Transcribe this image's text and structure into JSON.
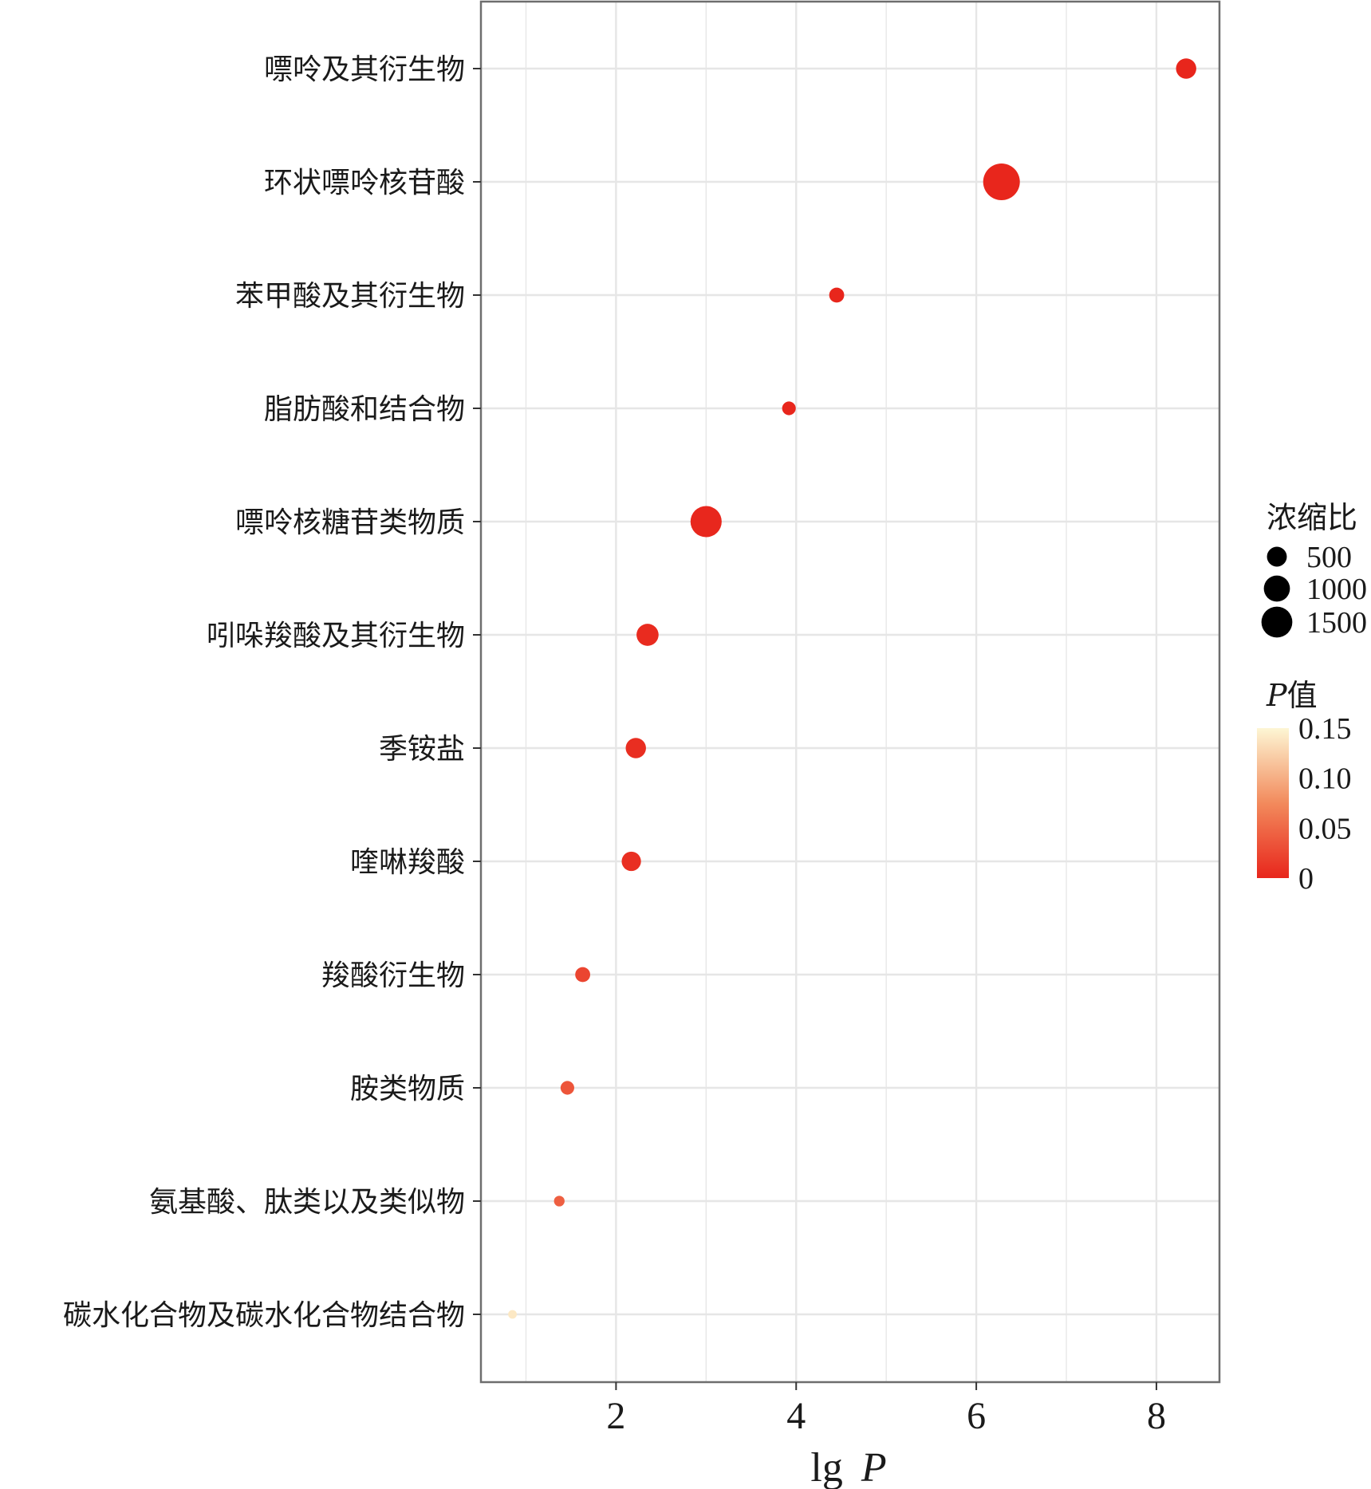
{
  "chart_data": {
    "type": "scatter",
    "title": "",
    "xlabel": {
      "prefix": "lg",
      "var": "P"
    },
    "ylabel": "",
    "xlim": [
      0.5,
      8.7
    ],
    "xticks": [
      2,
      4,
      6,
      8
    ],
    "grid": true,
    "categories": [
      "嘌呤及其衍生物",
      "环状嘌呤核苷酸",
      "苯甲酸及其衍生物",
      "脂肪酸和结合物",
      "嘌呤核糖苷类物质",
      "吲哚羧酸及其衍生物",
      "季铵盐",
      "喹啉羧酸",
      "羧酸衍生物",
      "胺类物质",
      "氨基酸、肽类以及类似物",
      "碳水化合物及碳水化合物结合物"
    ],
    "points": [
      {
        "category": "嘌呤及其衍生物",
        "lgP": 8.33,
        "enrichment": 550,
        "p": 0.0
      },
      {
        "category": "环状嘌呤核苷酸",
        "lgP": 6.28,
        "enrichment": 1800,
        "p": 0.0
      },
      {
        "category": "苯甲酸及其衍生物",
        "lgP": 4.45,
        "enrichment": 300,
        "p": 0.0
      },
      {
        "category": "脂肪酸和结合物",
        "lgP": 3.92,
        "enrichment": 250,
        "p": 0.0
      },
      {
        "category": "嘌呤核糖苷类物质",
        "lgP": 3.0,
        "enrichment": 1300,
        "p": 0.001
      },
      {
        "category": "吲哚羧酸及其衍生物",
        "lgP": 2.35,
        "enrichment": 650,
        "p": 0.004
      },
      {
        "category": "季铵盐",
        "lgP": 2.22,
        "enrichment": 550,
        "p": 0.006
      },
      {
        "category": "喹啉羧酸",
        "lgP": 2.17,
        "enrichment": 500,
        "p": 0.007
      },
      {
        "category": "羧酸衍生物",
        "lgP": 1.63,
        "enrichment": 300,
        "p": 0.023
      },
      {
        "category": "胺类物质",
        "lgP": 1.46,
        "enrichment": 250,
        "p": 0.035
      },
      {
        "category": "氨基酸、肽类以及类似物",
        "lgP": 1.37,
        "enrichment": 150,
        "p": 0.043
      },
      {
        "category": "碳水化合物及碳水化合物结合物",
        "lgP": 0.85,
        "enrichment": 100,
        "p": 0.14
      }
    ],
    "size_legend": {
      "title": "浓缩比",
      "values": [
        500,
        1000,
        1500
      ],
      "labels": [
        "500",
        "1000",
        "1500"
      ]
    },
    "color_legend": {
      "title_var": "P",
      "title_suffix": "值",
      "range": [
        0,
        0.15
      ],
      "ticks": [
        0.15,
        0.1,
        0.05,
        0
      ],
      "labels": [
        "0.15",
        "0.10",
        "0.05",
        "0"
      ],
      "low_color": "#e8261c",
      "mid_color": "#f28a5c",
      "high_color": "#fdf6d4"
    }
  }
}
